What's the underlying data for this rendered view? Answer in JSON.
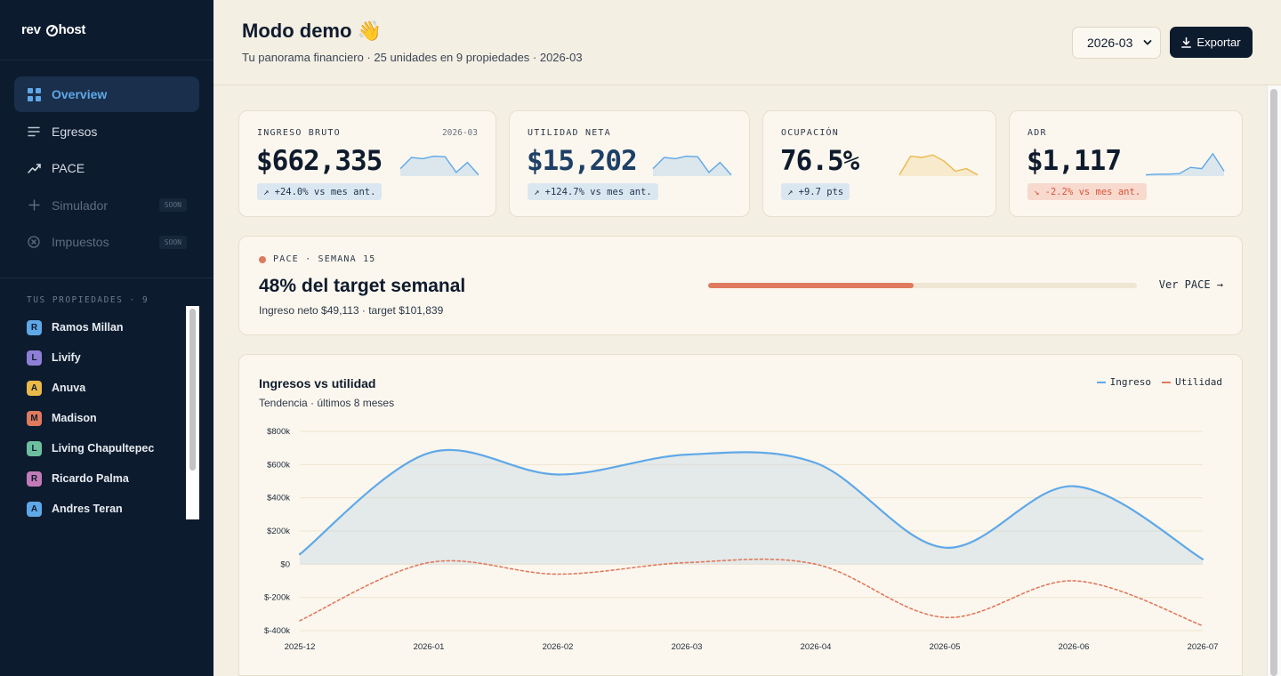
{
  "brand": {
    "part1": "rev",
    "part2": "host"
  },
  "sidebar": {
    "nav": [
      {
        "label": "Overview",
        "icon": "grid-icon",
        "active": true
      },
      {
        "label": "Egresos",
        "icon": "lines-icon"
      },
      {
        "label": "PACE",
        "icon": "trend-icon"
      },
      {
        "label": "Simulador",
        "icon": "plus-icon",
        "badge": "SOON"
      },
      {
        "label": "Impuestos",
        "icon": "circle-x-icon",
        "badge": "SOON"
      }
    ],
    "properties_title": "TUS PROPIEDADES · 9",
    "properties": [
      {
        "initial": "R",
        "name": "Ramos Millan",
        "color": "#5fa8e8"
      },
      {
        "initial": "L",
        "name": "Livify",
        "color": "#8e7fd6"
      },
      {
        "initial": "A",
        "name": "Anuva",
        "color": "#e9b949"
      },
      {
        "initial": "M",
        "name": "Madison",
        "color": "#e07a5f"
      },
      {
        "initial": "L",
        "name": "Living Chapultepec",
        "color": "#6cbf9f"
      },
      {
        "initial": "R",
        "name": "Ricardo Palma",
        "color": "#c27bb8"
      },
      {
        "initial": "A",
        "name": "Andres Teran",
        "color": "#5fa8e8"
      }
    ]
  },
  "header": {
    "title": "Modo demo 👋",
    "subtitle": "Tu panorama financiero · 25 unidades en 9 propiedades · 2026-03",
    "month_value": "2026-03",
    "export_label": "Exportar"
  },
  "kpis": [
    {
      "label": "INGRESO BRUTO",
      "date": "2026-03",
      "value": "$662,335",
      "badge": "↗ +24.0% vs mes ant.",
      "trend": "up",
      "spark": [
        0.3,
        0.75,
        0.7,
        0.8,
        0.78,
        0.15,
        0.55,
        0.05
      ],
      "spark_color": "#5fa8e8"
    },
    {
      "label": "UTILIDAD NETA",
      "value": "$15,202",
      "badge": "↗ +124.7% vs mes ant.",
      "trend": "up",
      "spark": [
        0.3,
        0.75,
        0.7,
        0.8,
        0.78,
        0.15,
        0.55,
        0.05
      ],
      "spark_color": "#5fa8e8"
    },
    {
      "label": "OCUPACIÓN",
      "value": "76.5%",
      "badge": "↗ +9.7 pts",
      "trend": "up",
      "spark": [
        0.05,
        0.8,
        0.75,
        0.85,
        0.6,
        0.2,
        0.3,
        0.05
      ],
      "spark_color": "#e9b949"
    },
    {
      "label": "ADR",
      "value": "$1,117",
      "badge": "↘ -2.2% vs mes ant.",
      "trend": "down",
      "spark": [
        0.05,
        0.08,
        0.08,
        0.1,
        0.35,
        0.3,
        0.9,
        0.2
      ],
      "spark_color": "#5fa8e8"
    }
  ],
  "pace": {
    "label": "PACE · SEMANA 15",
    "title": "48% del target semanal",
    "subtitle": "Ingreso neto $49,113 · target $101,839",
    "progress": 0.48,
    "link_label": "Ver PACE →"
  },
  "chart_data": {
    "type": "line",
    "title": "Ingresos vs utilidad",
    "subtitle": "Tendencia · últimos 8 meses",
    "x": [
      "2025-12",
      "2026-01",
      "2026-02",
      "2026-03",
      "2026-04",
      "2026-05",
      "2026-06",
      "2026-07"
    ],
    "y_ticks": [
      "$800k",
      "$600k",
      "$400k",
      "$200k",
      "$0",
      "$-200k",
      "$-400k"
    ],
    "ylim": [
      -400000,
      800000
    ],
    "series": [
      {
        "name": "Ingreso",
        "values": [
          60000,
          670000,
          540000,
          660000,
          610000,
          100000,
          470000,
          30000
        ],
        "color": "#5fa8e8",
        "style": "solid",
        "fill": true
      },
      {
        "name": "Utilidad",
        "values": [
          -340000,
          10000,
          -60000,
          10000,
          0,
          -320000,
          -100000,
          -370000
        ],
        "color": "#e07a5f",
        "style": "dashed"
      }
    ],
    "grid": true,
    "legend_position": "top-right"
  }
}
